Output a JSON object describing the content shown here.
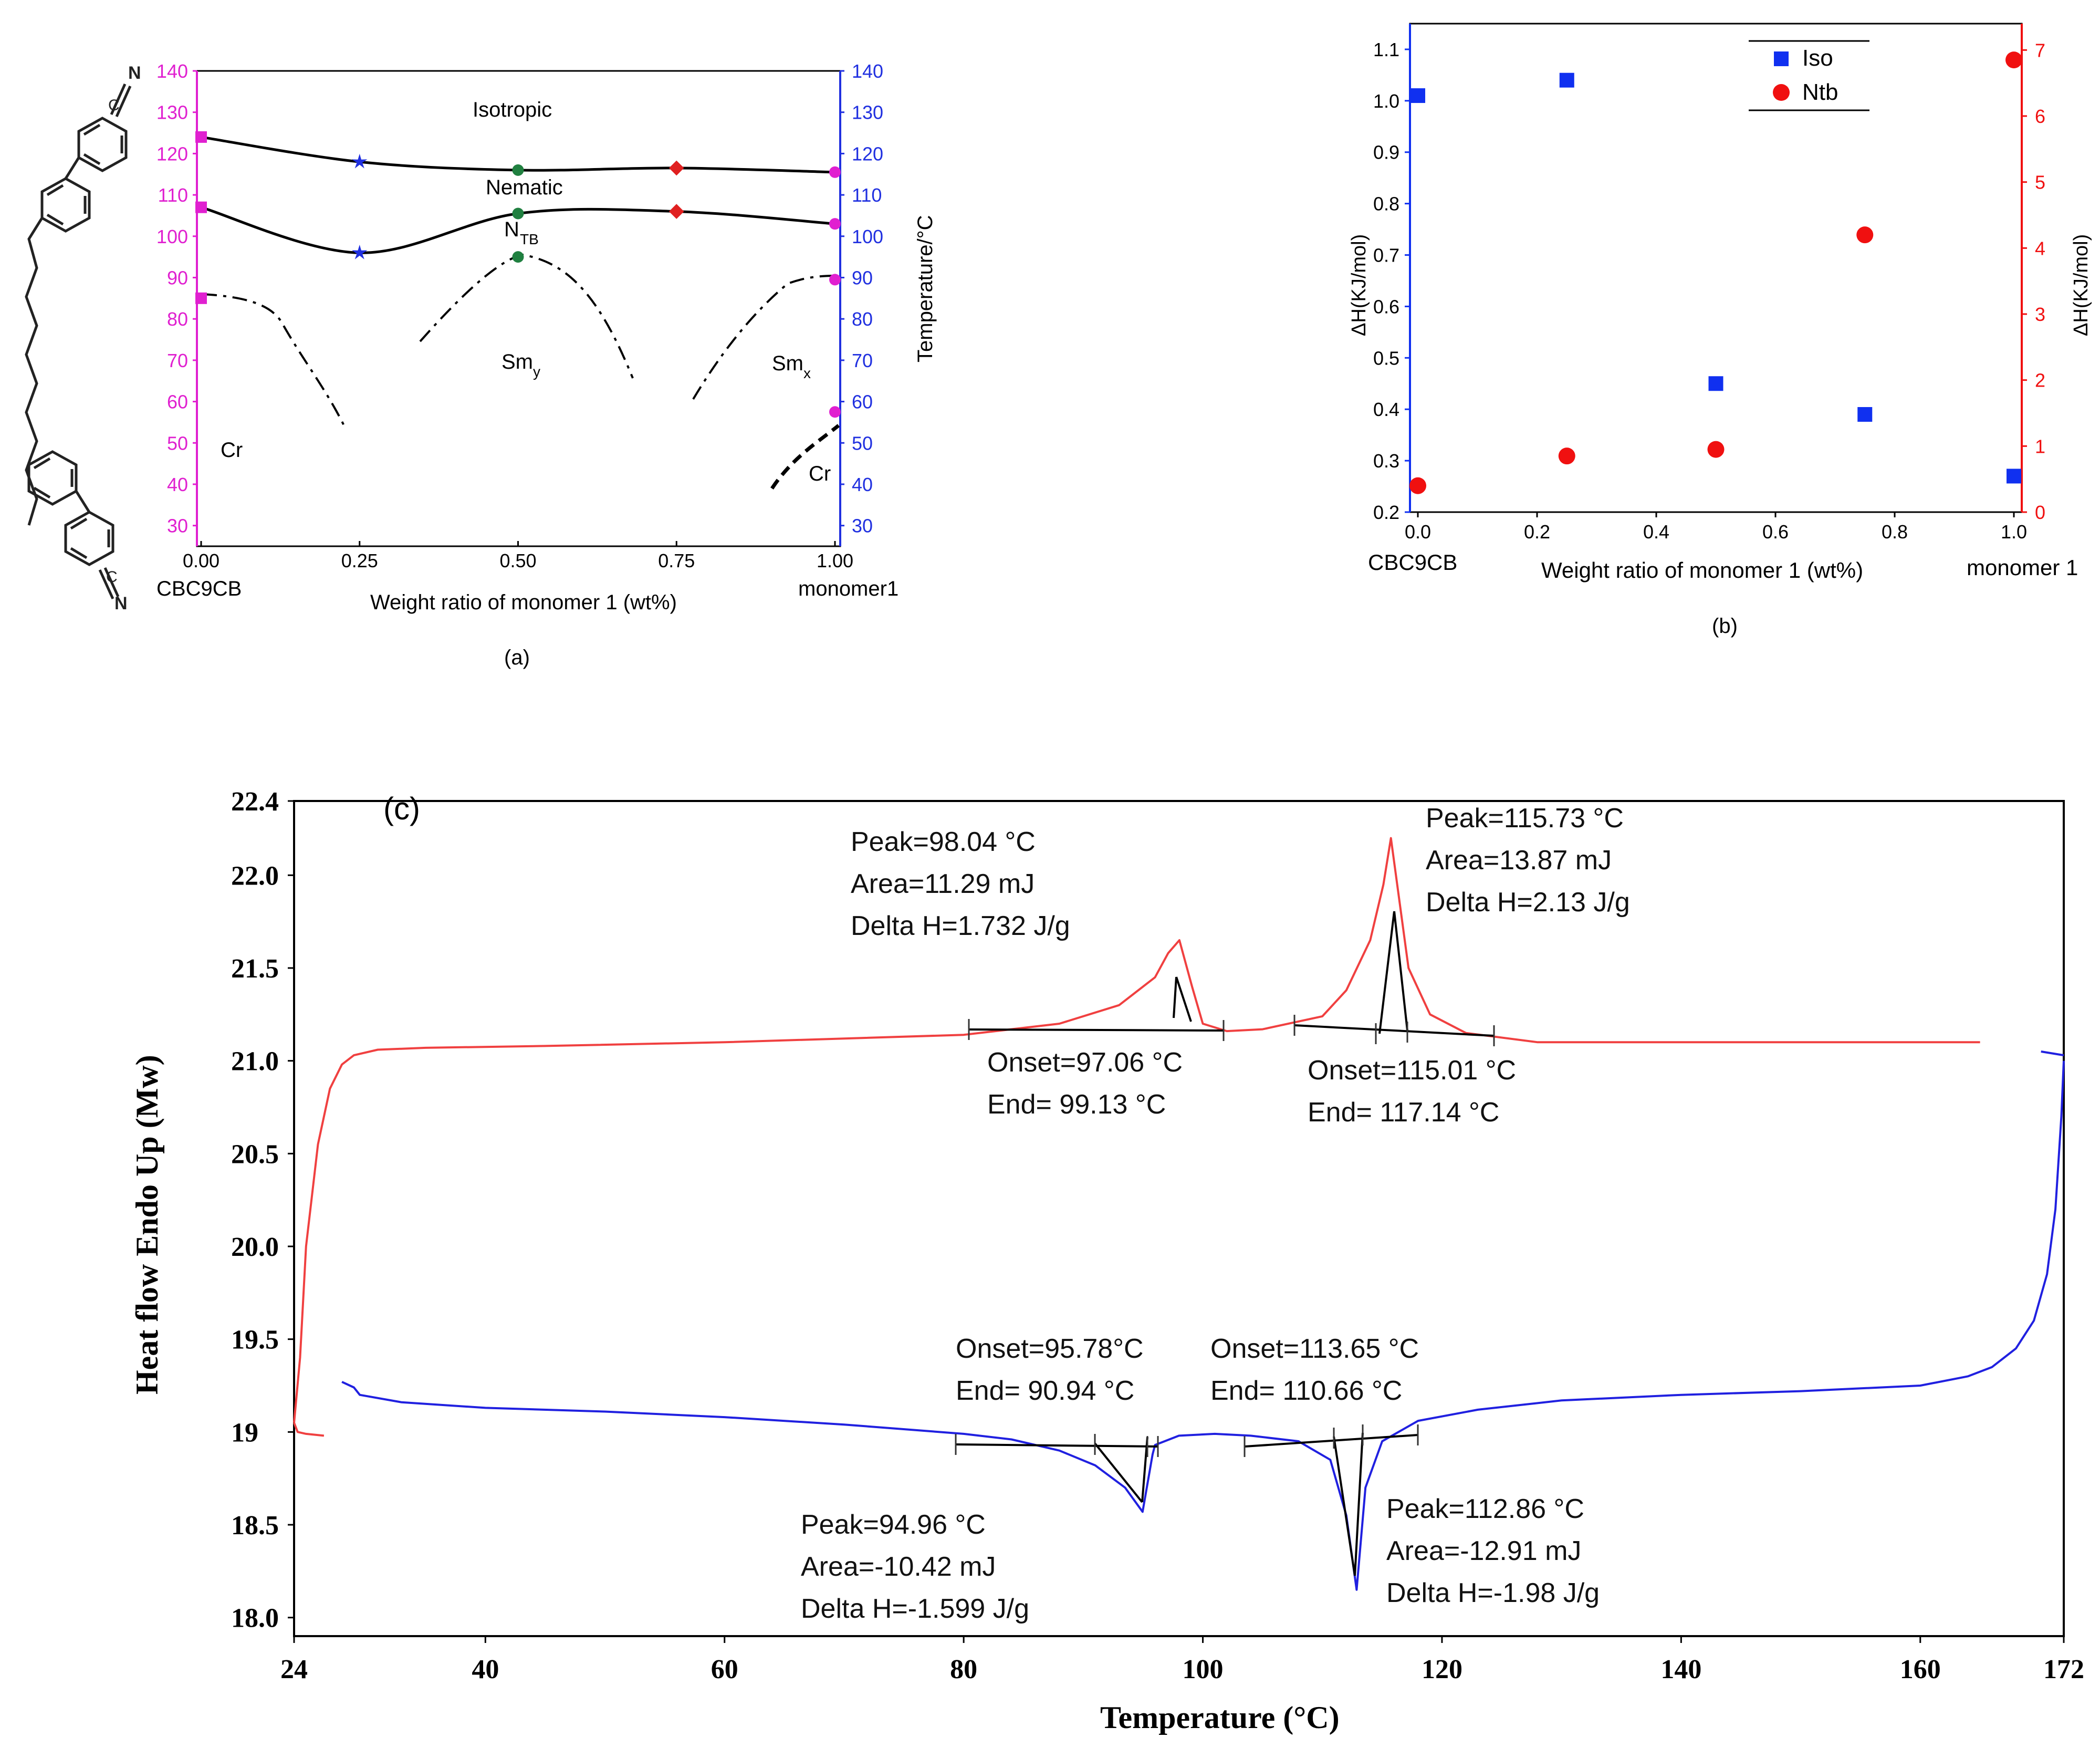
{
  "colors": {
    "magenta": "#e020d0",
    "blue": "#2030e0",
    "red": "#e02020",
    "black": "#000000",
    "green": "#208040",
    "iso": "#1030f0",
    "ntb": "#f01010",
    "heat": "#f04040",
    "cool": "#2020e0"
  },
  "chart_data": [
    {
      "id": "a",
      "type": "line",
      "panel_label": "(a)",
      "xlabel": "Weight ratio of monomer 1 (wt%)",
      "ylabel_right": "Temperature/°C",
      "xlim": [
        0,
        1
      ],
      "ylim": [
        25,
        140
      ],
      "xticks": [
        "0.00",
        "0.25",
        "0.50",
        "0.75",
        "1.00"
      ],
      "yticks": [
        "30",
        "40",
        "50",
        "60",
        "70",
        "80",
        "90",
        "100",
        "110",
        "120",
        "130",
        "140"
      ],
      "x_end_labels": {
        "left": "CBC9CB",
        "right": "monomer1"
      },
      "series": [
        {
          "name": "Iso",
          "x": [
            0,
            0.25,
            0.5,
            0.75,
            1.0
          ],
          "y": [
            124,
            118,
            116,
            116.5,
            115.5
          ],
          "markers": [
            "square",
            "star",
            "circle",
            "diamond",
            "circle"
          ],
          "marker_colors": [
            "#e020d0",
            "#2030e0",
            "#208040",
            "#e02020",
            "#e020d0"
          ]
        },
        {
          "name": "NTB",
          "x": [
            0,
            0.25,
            0.5,
            0.75,
            1.0
          ],
          "y": [
            107,
            96,
            105.5,
            106,
            103
          ],
          "markers": [
            "square",
            "star",
            "circle",
            "diamond",
            "circle"
          ],
          "marker_colors": [
            "#e020d0",
            "#2030e0",
            "#208040",
            "#e02020",
            "#e020d0"
          ]
        }
      ],
      "extra_points": [
        {
          "x": 0,
          "y": 85,
          "marker": "square",
          "color": "#e020d0"
        },
        {
          "x": 0.5,
          "y": 95,
          "marker": "circle",
          "color": "#208040"
        },
        {
          "x": 1.0,
          "y": 89.5,
          "marker": "circle",
          "color": "#e020d0"
        },
        {
          "x": 1.0,
          "y": 57.5,
          "marker": "circle",
          "color": "#e020d0"
        }
      ],
      "phase_labels": {
        "isotropic": "Isotropic",
        "nematic": "Nematic",
        "ntb": "N",
        "ntb_sub": "TB",
        "smy": "Sm",
        "smy_sub": "y",
        "smx": "Sm",
        "smx_sub": "x",
        "cr_left": "Cr",
        "cr_right": "Cr"
      },
      "molecule_labels": {
        "cyano_n": "N",
        "cyano_c": "C"
      }
    },
    {
      "id": "b",
      "type": "scatter",
      "panel_label": "(b)",
      "xlabel": "Weight ratio of monomer 1 (wt%)",
      "ylabel_left": "ΔH(KJ/mol)",
      "ylabel_right": "ΔH(KJ/mol)",
      "xlim": [
        0,
        1
      ],
      "ylim_left": [
        0.2,
        1.15
      ],
      "ylim_right": [
        0,
        7.4
      ],
      "xticks": [
        "0.0",
        "0.2",
        "0.4",
        "0.6",
        "0.8",
        "1.0"
      ],
      "yticks_left": [
        "0.2",
        "0.3",
        "0.4",
        "0.5",
        "0.6",
        "0.7",
        "0.8",
        "0.9",
        "1.0",
        "1.1"
      ],
      "yticks_right": [
        "0",
        "1",
        "2",
        "3",
        "4",
        "5",
        "6",
        "7"
      ],
      "x_end_labels": {
        "left": "CBC9CB",
        "right": "monomer 1"
      },
      "series": [
        {
          "name": "Iso",
          "axis": "left",
          "x": [
            0,
            0.25,
            0.5,
            0.75,
            1.0
          ],
          "y": [
            1.01,
            1.04,
            0.45,
            0.39,
            0.27
          ],
          "marker": "square",
          "color": "#1030f0"
        },
        {
          "name": "Ntb",
          "axis": "right",
          "x": [
            0,
            0.25,
            0.5,
            0.75,
            1.0
          ],
          "y": [
            0.4,
            0.85,
            0.95,
            4.2,
            6.85
          ],
          "marker": "circle",
          "color": "#f01010"
        }
      ]
    },
    {
      "id": "c",
      "type": "line",
      "panel_label": "(c)",
      "xlabel": "Temperature (°C)",
      "ylabel": "Heat flow Endo Up (Mw)",
      "xlim": [
        24,
        172
      ],
      "ylim": [
        17.9,
        22.4
      ],
      "xticks": [
        "24",
        "40",
        "60",
        "80",
        "100",
        "120",
        "140",
        "160",
        "172"
      ],
      "yticks": [
        "18.0",
        "18.5",
        "19",
        "19.5",
        "20.0",
        "20.5",
        "21.0",
        "21.5",
        "22.0",
        "22.4"
      ],
      "series": [
        {
          "name": "Heating",
          "color": "#f04040",
          "x": [
            24,
            24.5,
            25,
            26,
            27,
            28,
            29,
            31,
            35,
            45,
            60,
            80,
            88,
            93,
            96,
            97.1,
            98.04,
            99.1,
            100,
            102,
            105,
            110,
            112,
            114,
            115.1,
            115.73,
            117.2,
            119,
            122,
            128,
            140,
            160,
            165
          ],
          "y": [
            19.05,
            19.4,
            20.0,
            20.55,
            20.85,
            20.98,
            21.03,
            21.06,
            21.07,
            21.08,
            21.1,
            21.14,
            21.2,
            21.3,
            21.45,
            21.58,
            21.65,
            21.4,
            21.2,
            21.16,
            21.17,
            21.24,
            21.38,
            21.65,
            21.95,
            22.2,
            21.5,
            21.25,
            21.15,
            21.1,
            21.1,
            21.1,
            21.1
          ]
        },
        {
          "name": "Cooling",
          "color": "#2020e0",
          "x": [
            172,
            171.8,
            171.3,
            170.6,
            169.5,
            168,
            166,
            164,
            160,
            150,
            140,
            130,
            123,
            118,
            115,
            113.6,
            112.86,
            112,
            110.66,
            108,
            104,
            101,
            98,
            96,
            95.8,
            94.96,
            93.5,
            91,
            88,
            84,
            80,
            70,
            60,
            50,
            40,
            33,
            29.5,
            29,
            28
          ],
          "y": [
            21.0,
            20.7,
            20.2,
            19.85,
            19.6,
            19.45,
            19.35,
            19.3,
            19.25,
            19.22,
            19.2,
            19.17,
            19.12,
            19.06,
            18.95,
            18.7,
            18.15,
            18.55,
            18.85,
            18.95,
            18.98,
            18.99,
            18.98,
            18.93,
            18.88,
            18.57,
            18.7,
            18.82,
            18.9,
            18.96,
            18.99,
            19.04,
            19.08,
            19.11,
            19.13,
            19.16,
            19.2,
            19.24,
            19.27
          ]
        },
        {
          "name": "Heating start",
          "color": "#f04040",
          "x": [
            24,
            24.3,
            25,
            26.5
          ],
          "y": [
            19.05,
            19.0,
            18.99,
            18.98
          ]
        },
        {
          "name": "Cooling end",
          "color": "#2020e0",
          "x": [
            170.1,
            172
          ],
          "y": [
            21.05,
            21.03
          ]
        }
      ],
      "annotations": {
        "p1": [
          "Peak=98.04 °C",
          "Area=11.29 mJ",
          "Delta H=1.732 J/g"
        ],
        "p1_onset": [
          "Onset=97.06 °C",
          "End= 99.13 °C"
        ],
        "p2": [
          "Peak=115.73 °C",
          "Area=13.87 mJ",
          "Delta H=2.13 J/g"
        ],
        "p2_onset": [
          "Onset=115.01 °C",
          "End= 117.14 °C"
        ],
        "c1_onset": [
          "Onset=95.78°C",
          "End= 90.94 °C"
        ],
        "c2_onset": [
          "Onset=113.65 °C",
          "End= 110.66 °C"
        ],
        "c1": [
          "Peak=94.96 °C",
          "Area=-10.42 mJ",
          "Delta H=-1.599 J/g"
        ],
        "c2": [
          "Peak=112.86 °C",
          "Area=-12.91 mJ",
          "Delta H=-1.98 J/g"
        ]
      }
    }
  ]
}
